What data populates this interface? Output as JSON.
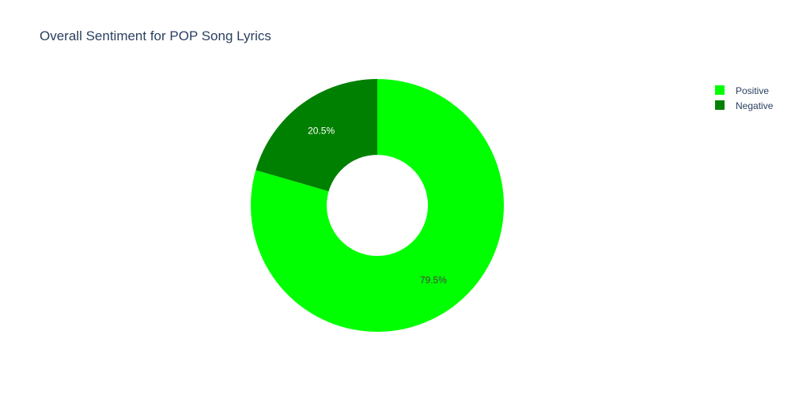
{
  "chart_data": {
    "type": "pie",
    "hole": true,
    "title": "Overall Sentiment for POP Song Lyrics",
    "slices": [
      {
        "label": "Positive",
        "value": 79.5,
        "display": "79.5%",
        "color": "#00ff00",
        "text_color": "#444444"
      },
      {
        "label": "Negative",
        "value": 20.5,
        "display": "20.5%",
        "color": "#008000",
        "text_color": "#ffffff"
      }
    ],
    "legend": {
      "position": "top-right",
      "entries": [
        "Positive",
        "Negative"
      ]
    }
  }
}
